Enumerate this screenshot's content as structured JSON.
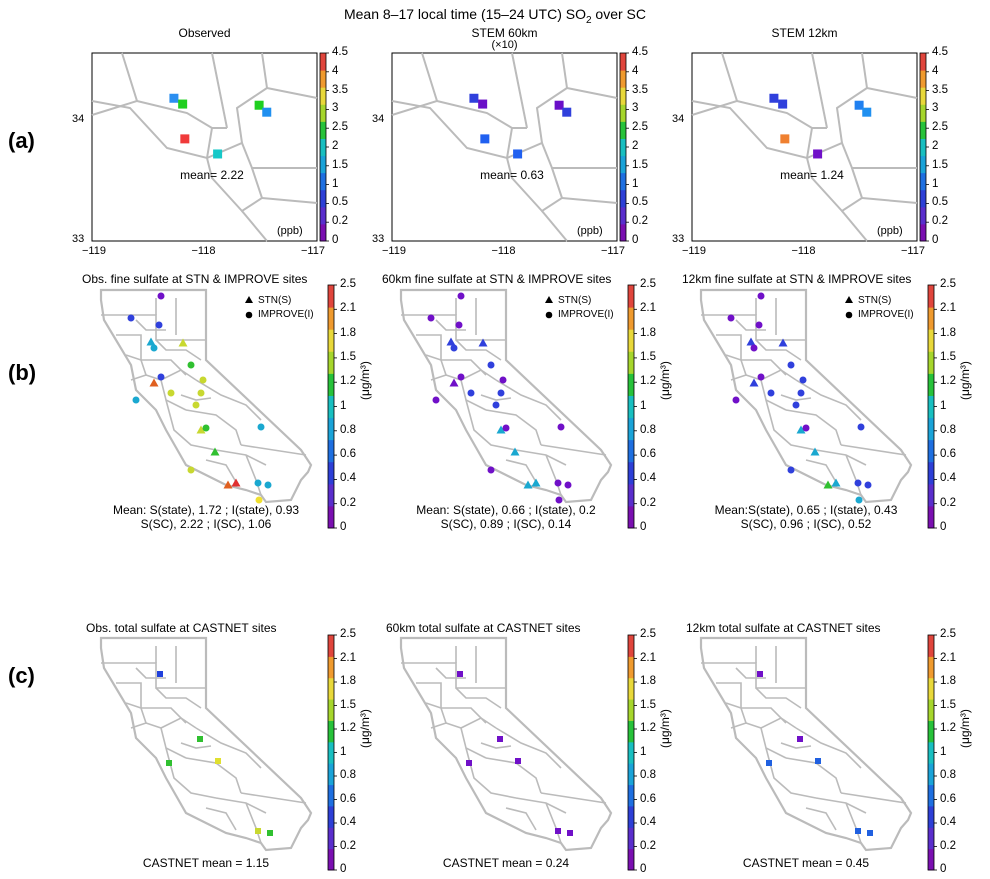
{
  "figure": {
    "main_title_prefix": "Mean 8–17 local time (15–24 UTC) SO",
    "main_title_sub": "2",
    "main_title_suffix": " over SC"
  },
  "row_labels": [
    "(a)",
    "(b)",
    "(c)"
  ],
  "panels_a": [
    {
      "title": "Observed",
      "subtitle": "",
      "mean_label": "mean= 2.22"
    },
    {
      "title": "STEM 60km",
      "subtitle": "(×10)",
      "mean_label": "mean= 0.63"
    },
    {
      "title": "STEM 12km",
      "subtitle": "",
      "mean_label": "mean= 1.24"
    }
  ],
  "panels_a_unit": "(ppb)",
  "panels_a_axes": {
    "x_ticks": [
      "−119",
      "−118",
      "−117"
    ],
    "y_ticks": [
      "34",
      "33"
    ]
  },
  "colorbar_a": {
    "ticks": [
      "4.5",
      "4",
      "3.5",
      "3",
      "2.5",
      "2",
      "1.5",
      "1",
      "0.5",
      "0.2",
      "0"
    ],
    "colors": [
      "#7a0fb0",
      "#5a2ecc",
      "#2d3fd6",
      "#1e6fe0",
      "#1aa3d8",
      "#18bfc0",
      "#27c23a",
      "#a6d62c",
      "#e8d83a",
      "#ef9a2e",
      "#e0453c"
    ]
  },
  "panels_b": [
    {
      "title": "Obs. fine sulfate at STN & IMPROVE sites",
      "mean_line1": "Mean: S(state), 1.72 ; I(state), 0.93",
      "mean_line2": "S(SC), 2.22 ; I(SC), 1.06"
    },
    {
      "title": "60km fine sulfate at STN & IMPROVE sites",
      "mean_line1": "Mean: S(state), 0.66 ; I(state), 0.2",
      "mean_line2": "S(SC), 0.89 ; I(SC), 0.14"
    },
    {
      "title": "12km fine sulfate at STN & IMPROVE sites",
      "mean_line1": "Mean:S(state), 0.65 ; I(state), 0.43",
      "mean_line2": "S(SC), 0.96 ; I(SC), 0.52"
    }
  ],
  "legend_b": {
    "stn": "STN(S)",
    "improve": "IMPROVE(I)"
  },
  "panels_c": [
    {
      "title": "Obs. total sulfate at CASTNET sites",
      "mean_label": "CASTNET mean = 1.15"
    },
    {
      "title": "60km total sulfate at CASTNET sites",
      "mean_label": "CASTNET mean = 0.24"
    },
    {
      "title": "12km total sulfate at CASTNET sites",
      "mean_label": "CASTNET mean = 0.45"
    }
  ],
  "colorbar_bc": {
    "ticks": [
      "2.5",
      "2.1",
      "1.8",
      "1.5",
      "1.2",
      "1",
      "0.8",
      "0.6",
      "0.4",
      "0.2",
      "0"
    ],
    "colors": [
      "#7a0fb0",
      "#5a2ecc",
      "#2d3fd6",
      "#1e6fe0",
      "#1aa3d8",
      "#18bfc0",
      "#27c23a",
      "#a6d62c",
      "#e8d83a",
      "#ef9a2e",
      "#e0453c"
    ],
    "unit_label": "(μg/m³)"
  },
  "map_a_data": [
    {
      "colors": [
        "#2c8ff0",
        "#1fcf1f",
        "#1fcf1f",
        "#2090f0",
        "#f03a3a",
        "#16c8c8"
      ]
    },
    {
      "colors": [
        "#3040dc",
        "#6a0fc8",
        "#6a0fc8",
        "#3040dc",
        "#2060f0",
        "#2060f0"
      ]
    },
    {
      "colors": [
        "#3040dc",
        "#3040dc",
        "#2080f0",
        "#2090f0",
        "#ef8030",
        "#7010c8"
      ]
    }
  ],
  "map_b_data": [
    {
      "colors": [
        "#7010c8",
        "#3040dc",
        "#3040dc",
        "#1aa8d0",
        "#1aa8d0",
        "#c8d830",
        "#3040dc",
        "#30c030",
        "#e06020",
        "#c8d830",
        "#c8d830",
        "#c8d830",
        "#1aa8d0",
        "#c8d830",
        "#c8d830",
        "#30c030",
        "#1aa8d0",
        "#30c030",
        "#e06020",
        "#c8d830",
        "#e03030",
        "#1aa8d0",
        "#1aa8d0",
        "#f0e030"
      ]
    },
    {
      "colors": [
        "#7010c8",
        "#7010c8",
        "#7010c8",
        "#3040dc",
        "#3040dc",
        "#3040dc",
        "#7010c8",
        "#3040dc",
        "#7010c8",
        "#7010c8",
        "#3040dc",
        "#3040dc",
        "#7010c8",
        "#3040dc",
        "#1aa8d0",
        "#7010c8",
        "#7010c8",
        "#1aa8d0",
        "#1aa8d0",
        "#7010c8",
        "#1aa8d0",
        "#7010c8",
        "#7010c8",
        "#7010c8"
      ]
    },
    {
      "colors": [
        "#7010c8",
        "#7010c8",
        "#7010c8",
        "#3040dc",
        "#7010c8",
        "#3040dc",
        "#7010c8",
        "#3040dc",
        "#3040dc",
        "#3040dc",
        "#3040dc",
        "#3040dc",
        "#7010c8",
        "#3040dc",
        "#1aa8d0",
        "#7010c8",
        "#3040dc",
        "#1aa8d0",
        "#30c030",
        "#3040dc",
        "#1aa8d0",
        "#3040dc",
        "#3040dc",
        "#1aa8d0"
      ]
    }
  ],
  "map_c_data": [
    {
      "colors": [
        "#2040dc",
        "#30c030",
        "#30c030",
        "#e0e030",
        "#c8d830",
        "#30c030"
      ]
    },
    {
      "colors": [
        "#7010c8",
        "#7010c8",
        "#7010c8",
        "#7010c8",
        "#7010c8",
        "#7010c8"
      ]
    },
    {
      "colors": [
        "#7010c8",
        "#7010c8",
        "#2060e0",
        "#2060e0",
        "#2060e0",
        "#2060e0"
      ]
    }
  ]
}
